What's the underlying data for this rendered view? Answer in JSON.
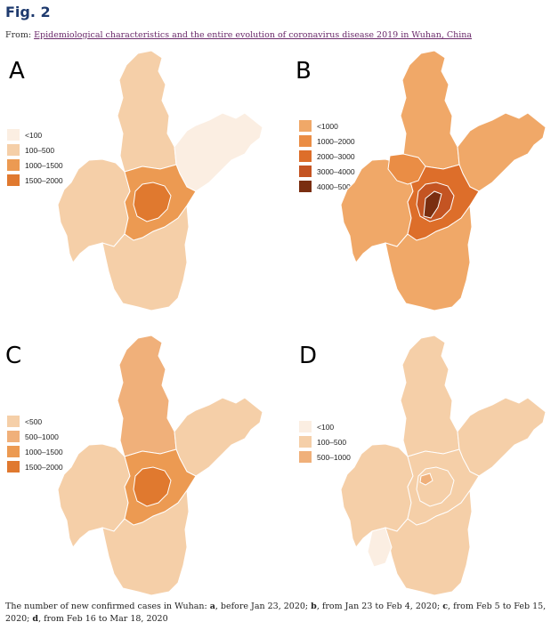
{
  "figure": {
    "title": "Fig. 2",
    "from_prefix": "From: ",
    "from_link": "Epidemiological characteristics and the entire evolution of coronavirus disease 2019 in Wuhan, China"
  },
  "panels": [
    {
      "letter": "A",
      "legend": [
        {
          "label": "<100",
          "color": "#fbeee2"
        },
        {
          "label": "100–500",
          "color": "#f5cfa8"
        },
        {
          "label": "1000–1500",
          "color": "#ec9a52"
        },
        {
          "label": "1500–2000",
          "color": "#e0792f"
        }
      ],
      "colors": {
        "north": "#f5cfa8",
        "east": "#fbeee2",
        "west": "#f5cfa8",
        "south": "#f5cfa8",
        "core": "#ec9a52",
        "center": "#e0792f"
      }
    },
    {
      "letter": "B",
      "legend": [
        {
          "label": "<1000",
          "color": "#f0a868"
        },
        {
          "label": "1000–2000",
          "color": "#ea8d45"
        },
        {
          "label": "2000–3000",
          "color": "#dd6e2a"
        },
        {
          "label": "3000–4000",
          "color": "#c45422"
        },
        {
          "label": "4000–5000",
          "color": "#7a2e10"
        }
      ],
      "colors": {
        "north": "#f0a868",
        "east": "#f0a868",
        "west": "#f0a868",
        "south": "#f0a868",
        "northwest": "#ea8d45",
        "core": "#dd6e2a",
        "center": "#c45422",
        "dark": "#7a2e10"
      }
    },
    {
      "letter": "C",
      "legend": [
        {
          "label": "<500",
          "color": "#f5cfa8"
        },
        {
          "label": "500–1000",
          "color": "#f0b07a"
        },
        {
          "label": "1000–1500",
          "color": "#ec9a52"
        },
        {
          "label": "1500–2000",
          "color": "#e0792f"
        }
      ],
      "colors": {
        "north": "#f0b07a",
        "east": "#f5cfa8",
        "west": "#f5cfa8",
        "south": "#f5cfa8",
        "core": "#ec9a52",
        "center": "#e0792f"
      }
    },
    {
      "letter": "D",
      "legend": [
        {
          "label": "<100",
          "color": "#fbeee2"
        },
        {
          "label": "100–500",
          "color": "#f5cfa8"
        },
        {
          "label": "500–1000",
          "color": "#f0b07a"
        }
      ],
      "colors": {
        "north": "#f5cfa8",
        "east": "#f5cfa8",
        "west": "#f5cfa8",
        "south": "#f5cfa8",
        "core": "#f5cfa8",
        "center": "#f5cfa8",
        "southwest": "#fbeee2",
        "small": "#f0b07a"
      }
    }
  ],
  "caption": {
    "intro": "The number of new confirmed cases in Wuhan: ",
    "a_label": "a",
    "a_text": ", before Jan 23, 2020; ",
    "b_label": "b",
    "b_text": ", from Jan 23 to Feb 4, 2020; ",
    "c_label": "c",
    "c_text": ", from Feb 5 to Feb 15, 2020; ",
    "d_label": "d",
    "d_text": ", from Feb 16 to Mar 18, 2020"
  }
}
